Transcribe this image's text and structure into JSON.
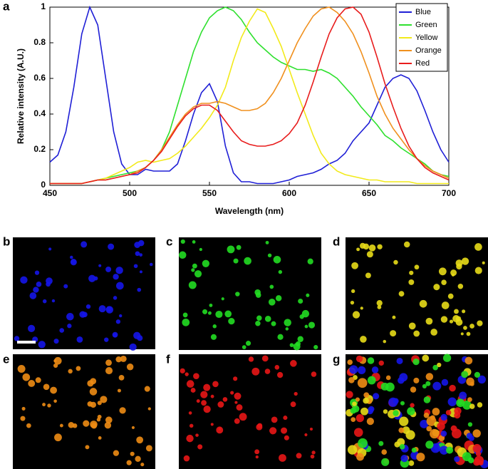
{
  "chart_data": {
    "type": "line",
    "xlabel": "Wavelength (nm)",
    "ylabel": "Relative intensity (A.U.)",
    "x": [
      450,
      455,
      460,
      465,
      470,
      475,
      480,
      485,
      490,
      495,
      500,
      505,
      510,
      515,
      520,
      525,
      530,
      535,
      540,
      545,
      550,
      555,
      560,
      565,
      570,
      575,
      580,
      585,
      590,
      595,
      600,
      605,
      610,
      615,
      620,
      625,
      630,
      635,
      640,
      645,
      650,
      655,
      660,
      665,
      670,
      675,
      680,
      685,
      690,
      695,
      700
    ],
    "series": [
      {
        "name": "Blue",
        "color": "#1f1fd6",
        "values": [
          0.13,
          0.17,
          0.3,
          0.55,
          0.85,
          1.0,
          0.9,
          0.6,
          0.3,
          0.12,
          0.06,
          0.06,
          0.09,
          0.08,
          0.08,
          0.08,
          0.12,
          0.25,
          0.4,
          0.52,
          0.57,
          0.47,
          0.22,
          0.07,
          0.02,
          0.02,
          0.01,
          0.01,
          0.01,
          0.02,
          0.03,
          0.05,
          0.06,
          0.07,
          0.09,
          0.12,
          0.14,
          0.18,
          0.25,
          0.3,
          0.35,
          0.45,
          0.55,
          0.6,
          0.62,
          0.6,
          0.53,
          0.42,
          0.3,
          0.2,
          0.13
        ]
      },
      {
        "name": "Green",
        "color": "#2ee02e",
        "values": [
          0.01,
          0.01,
          0.01,
          0.01,
          0.01,
          0.02,
          0.03,
          0.04,
          0.05,
          0.06,
          0.07,
          0.08,
          0.1,
          0.14,
          0.2,
          0.3,
          0.45,
          0.6,
          0.75,
          0.86,
          0.94,
          0.98,
          1.0,
          0.98,
          0.93,
          0.86,
          0.8,
          0.76,
          0.72,
          0.69,
          0.67,
          0.65,
          0.65,
          0.64,
          0.65,
          0.63,
          0.6,
          0.55,
          0.5,
          0.44,
          0.39,
          0.34,
          0.28,
          0.25,
          0.21,
          0.18,
          0.15,
          0.12,
          0.08,
          0.06,
          0.05
        ]
      },
      {
        "name": "Yellow",
        "color": "#f2ea1a",
        "values": [
          0.01,
          0.01,
          0.01,
          0.01,
          0.01,
          0.02,
          0.03,
          0.04,
          0.06,
          0.08,
          0.1,
          0.13,
          0.14,
          0.13,
          0.14,
          0.15,
          0.18,
          0.22,
          0.27,
          0.32,
          0.38,
          0.45,
          0.55,
          0.7,
          0.83,
          0.92,
          0.99,
          0.97,
          0.88,
          0.78,
          0.65,
          0.52,
          0.4,
          0.28,
          0.18,
          0.12,
          0.08,
          0.06,
          0.05,
          0.04,
          0.03,
          0.03,
          0.02,
          0.02,
          0.02,
          0.02,
          0.01,
          0.01,
          0.01,
          0.01,
          0.01
        ]
      },
      {
        "name": "Orange",
        "color": "#f0901e",
        "values": [
          0.01,
          0.01,
          0.01,
          0.01,
          0.01,
          0.02,
          0.03,
          0.03,
          0.04,
          0.05,
          0.06,
          0.08,
          0.1,
          0.14,
          0.2,
          0.27,
          0.34,
          0.4,
          0.44,
          0.46,
          0.46,
          0.47,
          0.46,
          0.44,
          0.42,
          0.42,
          0.43,
          0.46,
          0.52,
          0.6,
          0.7,
          0.8,
          0.88,
          0.95,
          0.99,
          1.0,
          0.97,
          0.92,
          0.85,
          0.75,
          0.63,
          0.5,
          0.4,
          0.32,
          0.26,
          0.2,
          0.15,
          0.11,
          0.08,
          0.06,
          0.04
        ]
      },
      {
        "name": "Red",
        "color": "#e81c1c",
        "values": [
          0.01,
          0.01,
          0.01,
          0.01,
          0.01,
          0.02,
          0.03,
          0.03,
          0.04,
          0.05,
          0.06,
          0.07,
          0.1,
          0.14,
          0.19,
          0.26,
          0.33,
          0.39,
          0.43,
          0.45,
          0.45,
          0.42,
          0.36,
          0.3,
          0.25,
          0.23,
          0.22,
          0.22,
          0.23,
          0.25,
          0.29,
          0.35,
          0.45,
          0.58,
          0.72,
          0.85,
          0.94,
          0.99,
          1.0,
          0.96,
          0.86,
          0.72,
          0.57,
          0.44,
          0.32,
          0.22,
          0.15,
          0.1,
          0.07,
          0.05,
          0.03
        ]
      }
    ],
    "xlim": [
      450,
      700
    ],
    "xticks": [
      450,
      500,
      550,
      600,
      650,
      700
    ],
    "ylim": [
      0,
      1
    ],
    "yticks": [
      0,
      0.2,
      0.4,
      0.6,
      0.8,
      1
    ],
    "legend": "upper right"
  },
  "panel_labels": [
    "a",
    "b",
    "c",
    "d",
    "e",
    "f",
    "g"
  ]
}
